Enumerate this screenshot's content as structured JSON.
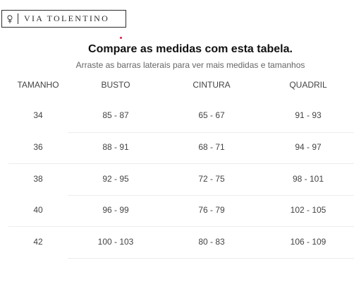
{
  "logo": {
    "text": "VIA TOLENTINO"
  },
  "accent_color": "#e8173b",
  "title": "Compare as medidas com esta tabela.",
  "subtitle": "Arraste as barras laterais para ver mais medidas e tamanhos",
  "table": {
    "headers": [
      "TAMANHO",
      "BUSTO",
      "CINTURA",
      "QUADRIL"
    ],
    "rows": [
      [
        "34",
        "85 - 87",
        "65 - 67",
        "91 - 93"
      ],
      [
        "36",
        "88 - 91",
        "68 - 71",
        "94 - 97"
      ],
      [
        "38",
        "92 - 95",
        "72 - 75",
        "98 - 101"
      ],
      [
        "40",
        "96 - 99",
        "76 - 79",
        "102 - 105"
      ],
      [
        "42",
        "100 - 103",
        "80 - 83",
        "106 - 109"
      ]
    ]
  }
}
